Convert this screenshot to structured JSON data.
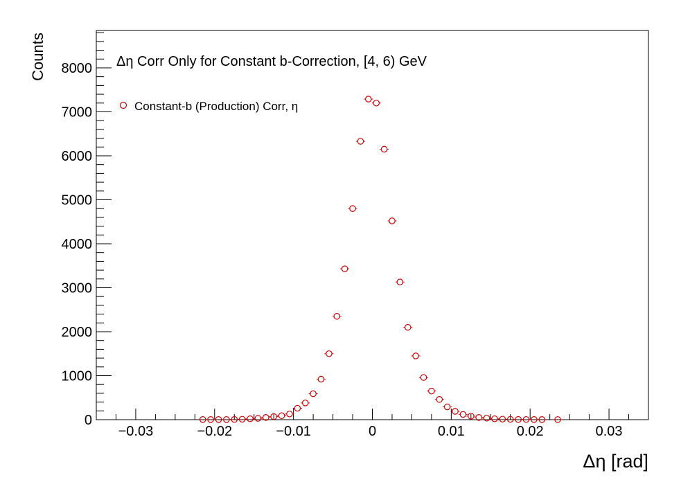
{
  "chart_data": {
    "type": "scatter",
    "title": "Δη Corr Only for Constant b-Correction, [4, 6) GeV",
    "xlabel": "Δη  [rad]",
    "ylabel": "Counts",
    "xlim": [
      -0.035,
      0.035
    ],
    "ylim": [
      0,
      8850
    ],
    "grid": false,
    "legend_position": "top-left",
    "x_ticks": [
      "−0.03",
      "−0.02",
      "−0.01",
      "0",
      "0.01",
      "0.02",
      "0.03"
    ],
    "x_tick_values": [
      -0.03,
      -0.02,
      -0.01,
      0,
      0.01,
      0.02,
      0.03
    ],
    "y_ticks": [
      "0",
      "1000",
      "2000",
      "3000",
      "4000",
      "5000",
      "6000",
      "7000",
      "8000"
    ],
    "y_tick_values": [
      0,
      1000,
      2000,
      3000,
      4000,
      5000,
      6000,
      7000,
      8000
    ],
    "series": [
      {
        "name": "Constant-b (Production) Corr, η",
        "color": "#cc0000",
        "marker": "open-circle",
        "x": [
          -0.0215,
          -0.0205,
          -0.0195,
          -0.0185,
          -0.0175,
          -0.0165,
          -0.0155,
          -0.0145,
          -0.0135,
          -0.0125,
          -0.0115,
          -0.0105,
          -0.0095,
          -0.0085,
          -0.0075,
          -0.0065,
          -0.0055,
          -0.0045,
          -0.0035,
          -0.0025,
          -0.0015,
          -0.0005,
          0.0005,
          0.0015,
          0.0025,
          0.0035,
          0.0045,
          0.0055,
          0.0065,
          0.0075,
          0.0085,
          0.0095,
          0.0105,
          0.0115,
          0.0125,
          0.0135,
          0.0145,
          0.0155,
          0.0165,
          0.0175,
          0.0185,
          0.0195,
          0.0205,
          0.0215,
          0.0235
        ],
        "y": [
          3,
          3,
          3,
          3,
          5,
          10,
          20,
          30,
          50,
          70,
          90,
          130,
          260,
          380,
          590,
          920,
          1500,
          2350,
          3430,
          4800,
          6330,
          7290,
          7200,
          6150,
          4520,
          3130,
          2100,
          1450,
          960,
          650,
          460,
          290,
          190,
          120,
          80,
          50,
          35,
          20,
          12,
          8,
          5,
          4,
          3,
          3,
          2
        ]
      }
    ]
  }
}
